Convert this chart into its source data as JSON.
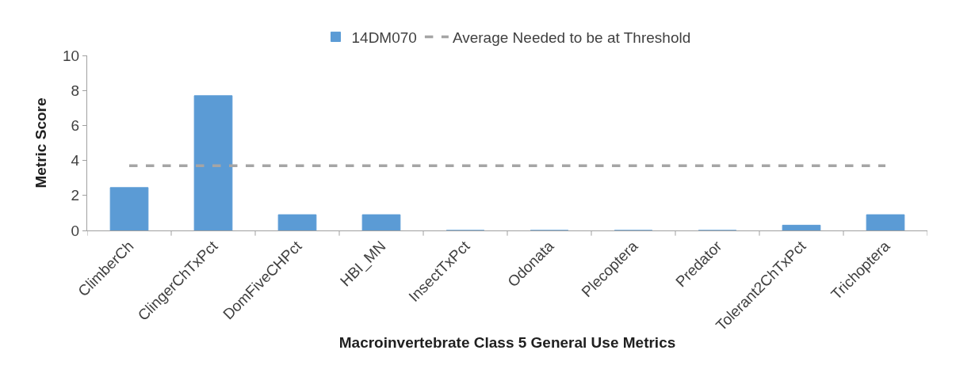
{
  "chart_data": {
    "type": "bar",
    "xlabel": "Macroinvertebrate Class 5 General Use Metrics",
    "ylabel": "Metric Score",
    "categories": [
      "ClimberCh",
      "ClingerChTxPct",
      "DomFiveCHPct",
      "HBI_MN",
      "InsectTxPct",
      "Odonata",
      "Plecoptera",
      "Predator",
      "Tolerant2ChTxPct",
      "Trichoptera"
    ],
    "series": [
      {
        "name": "14DM070",
        "color": "#5b9bd5",
        "values": [
          2.45,
          7.7,
          0.9,
          0.9,
          0,
          0,
          0,
          0,
          0.3,
          0.9
        ]
      },
      {
        "name": "Average Needed to be at Threshold",
        "type": "line",
        "color": "#a5a5a5",
        "line_style": "dashed",
        "values": [
          3.7,
          3.7,
          3.7,
          3.7,
          3.7,
          3.7,
          3.7,
          3.7,
          3.7,
          3.7
        ]
      }
    ],
    "ylim": [
      0,
      10
    ],
    "yticks": [
      0,
      2,
      4,
      6,
      8,
      10
    ],
    "legend": "top",
    "marker": "none"
  }
}
